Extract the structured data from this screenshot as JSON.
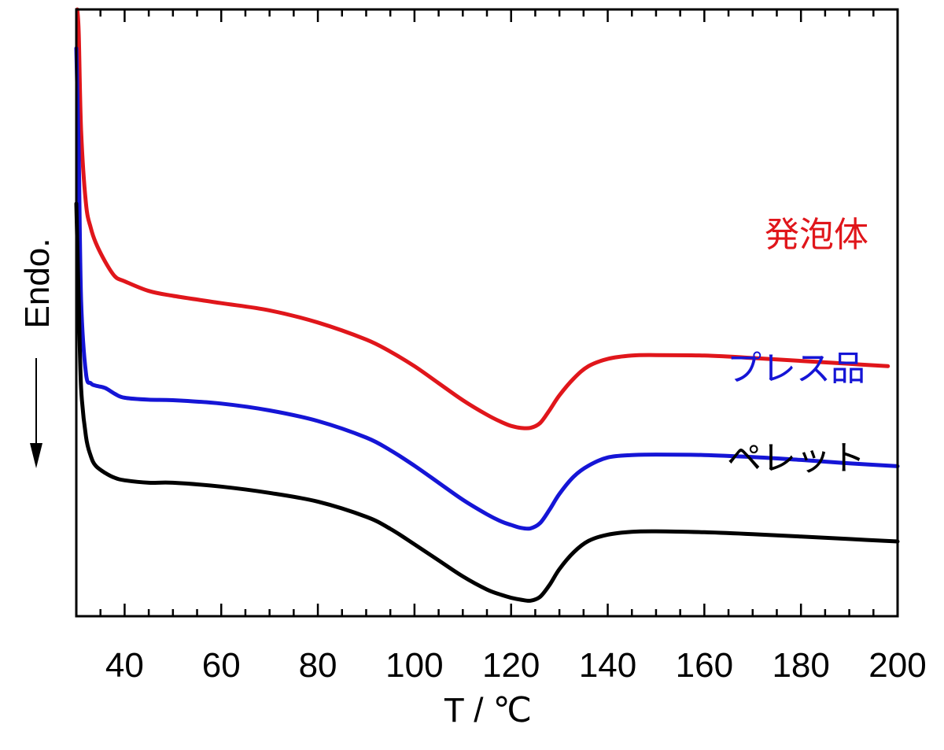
{
  "chart_data": {
    "type": "line",
    "xlabel": "T / ℃",
    "ylabel": "Endo.",
    "xlim": [
      30,
      200
    ],
    "x_ticks": [
      40,
      60,
      80,
      100,
      120,
      140,
      160,
      180,
      200
    ],
    "x_tick_labels": [
      "40",
      "60",
      "80",
      "100",
      "120",
      "140",
      "160",
      "180",
      "200"
    ],
    "y_ticks_visible": false,
    "grid": false,
    "legend": "inline labels at right",
    "series": [
      {
        "name": "発泡体",
        "color": "#e0161b",
        "x": [
          30.2,
          30.5,
          31,
          32,
          33,
          34,
          36,
          38,
          40,
          45,
          50,
          60,
          70,
          80,
          90,
          95,
          100,
          105,
          110,
          115,
          118,
          120,
          122,
          124,
          126,
          128,
          130,
          133,
          136,
          140,
          145,
          150,
          160,
          170,
          180,
          190,
          198
        ],
        "y": [
          0,
          5,
          25,
          40,
          45,
          48,
          52,
          55,
          56,
          58,
          59,
          60.5,
          62,
          64.5,
          68,
          70.5,
          73.5,
          77,
          80.5,
          83.5,
          85,
          85.8,
          86.2,
          86.2,
          85.2,
          82.5,
          79.5,
          76,
          73.5,
          72,
          71.3,
          71.2,
          71.3,
          71.8,
          72.4,
          73,
          73.5
        ]
      },
      {
        "name": "プレス品",
        "color": "#1515d6",
        "x": [
          30,
          30.5,
          31,
          32,
          33,
          34,
          36,
          38,
          40,
          45,
          50,
          60,
          70,
          80,
          90,
          95,
          100,
          105,
          110,
          115,
          118,
          120,
          122,
          124,
          126,
          128,
          130,
          133,
          136,
          140,
          145,
          150,
          160,
          170,
          180,
          190,
          200
        ],
        "y": [
          8,
          30,
          60,
          75,
          77,
          77.5,
          78,
          79.2,
          80,
          80.4,
          80.5,
          81.2,
          82.6,
          84.8,
          88.2,
          90.8,
          94,
          97.5,
          101,
          104,
          105.5,
          106.2,
          106.8,
          106.9,
          105.8,
          103,
          99.8,
          96.2,
          94,
          92.3,
          91.8,
          91.7,
          91.8,
          92.2,
          92.8,
          93.5,
          94.1
        ]
      },
      {
        "name": "ペレット",
        "color": "#000000",
        "x": [
          30,
          30.5,
          31,
          32,
          33,
          34,
          36,
          38,
          40,
          45,
          50,
          60,
          70,
          80,
          90,
          95,
          100,
          105,
          110,
          115,
          118,
          120,
          122,
          124,
          126,
          128,
          130,
          133,
          136,
          140,
          145,
          150,
          160,
          170,
          180,
          190,
          200
        ],
        "y": [
          40,
          60,
          78,
          88,
          92,
          94,
          95.5,
          96.5,
          97,
          97.5,
          97.5,
          98.3,
          99.6,
          101.4,
          104.5,
          107,
          110.2,
          113.5,
          116.8,
          119.5,
          120.6,
          121.2,
          121.6,
          121.8,
          121,
          118.5,
          115.3,
          111.8,
          109.5,
          108.2,
          107.6,
          107.5,
          107.7,
          108.1,
          108.6,
          109.1,
          109.6
        ]
      }
    ]
  }
}
